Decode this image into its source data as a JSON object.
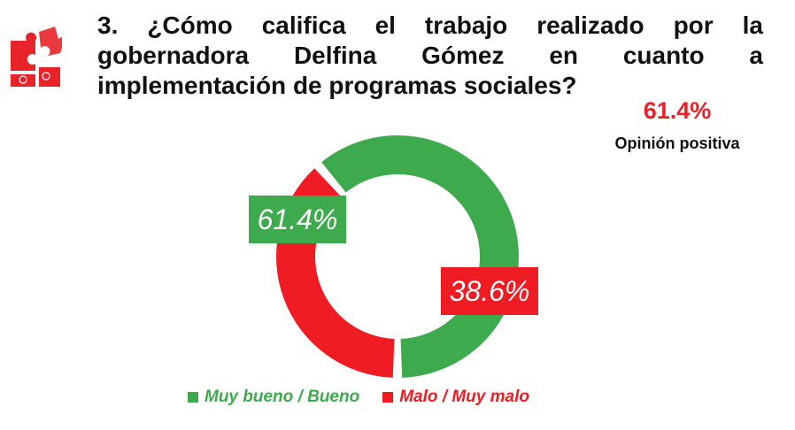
{
  "question": "3. ¿Cómo califica el trabajo realizado por la gobernadora Delfina Gómez en cuanto a implementación de programas sociales?",
  "kpi": {
    "value": "61.4%",
    "label": "Opinión positiva"
  },
  "colors": {
    "green": "#3daa4e",
    "red": "#ef1c23",
    "kpi": "#e8232a",
    "logo": "#e8232a"
  },
  "chart_data": {
    "type": "pie",
    "donut": true,
    "categories": [
      "Muy bueno / Bueno",
      "Malo / Muy malo"
    ],
    "values": [
      61.4,
      38.6
    ],
    "data_labels": [
      "61.4%",
      "38.6%"
    ],
    "colors": [
      "#3daa4e",
      "#ef1c23"
    ],
    "legend": "bottom"
  }
}
